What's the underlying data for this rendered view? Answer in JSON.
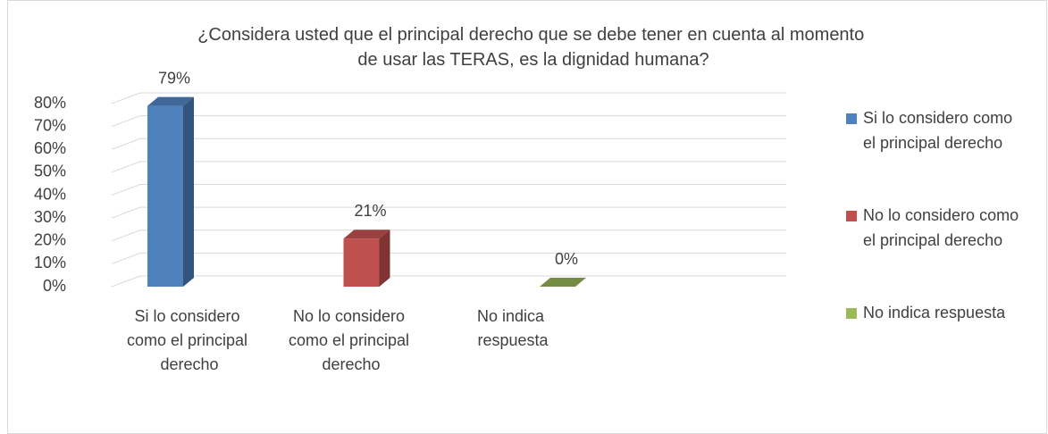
{
  "chart_data": {
    "type": "bar3d",
    "title": "¿Considera usted que el principal derecho que se debe tener en cuenta al momento de usar las TERAS, es la dignidad humana?",
    "categories": [
      "Si lo considero como el principal derecho",
      "No lo considero como el principal derecho",
      "No indica respuesta"
    ],
    "values": [
      79,
      21,
      0
    ],
    "value_labels": [
      "79%",
      "21%",
      "0%"
    ],
    "colors": [
      "#4f81bd",
      "#c0504d",
      "#9bbb59"
    ],
    "ylim": [
      0,
      80
    ],
    "yticks": [
      {
        "value": 0,
        "label": "0%"
      },
      {
        "value": 10,
        "label": "10%"
      },
      {
        "value": 20,
        "label": "20%"
      },
      {
        "value": 30,
        "label": "30%"
      },
      {
        "value": 40,
        "label": "40%"
      },
      {
        "value": 50,
        "label": "50%"
      },
      {
        "value": 60,
        "label": "60%"
      },
      {
        "value": 70,
        "label": "70%"
      },
      {
        "value": 80,
        "label": "80%"
      }
    ],
    "grid": true,
    "legend": "right"
  }
}
